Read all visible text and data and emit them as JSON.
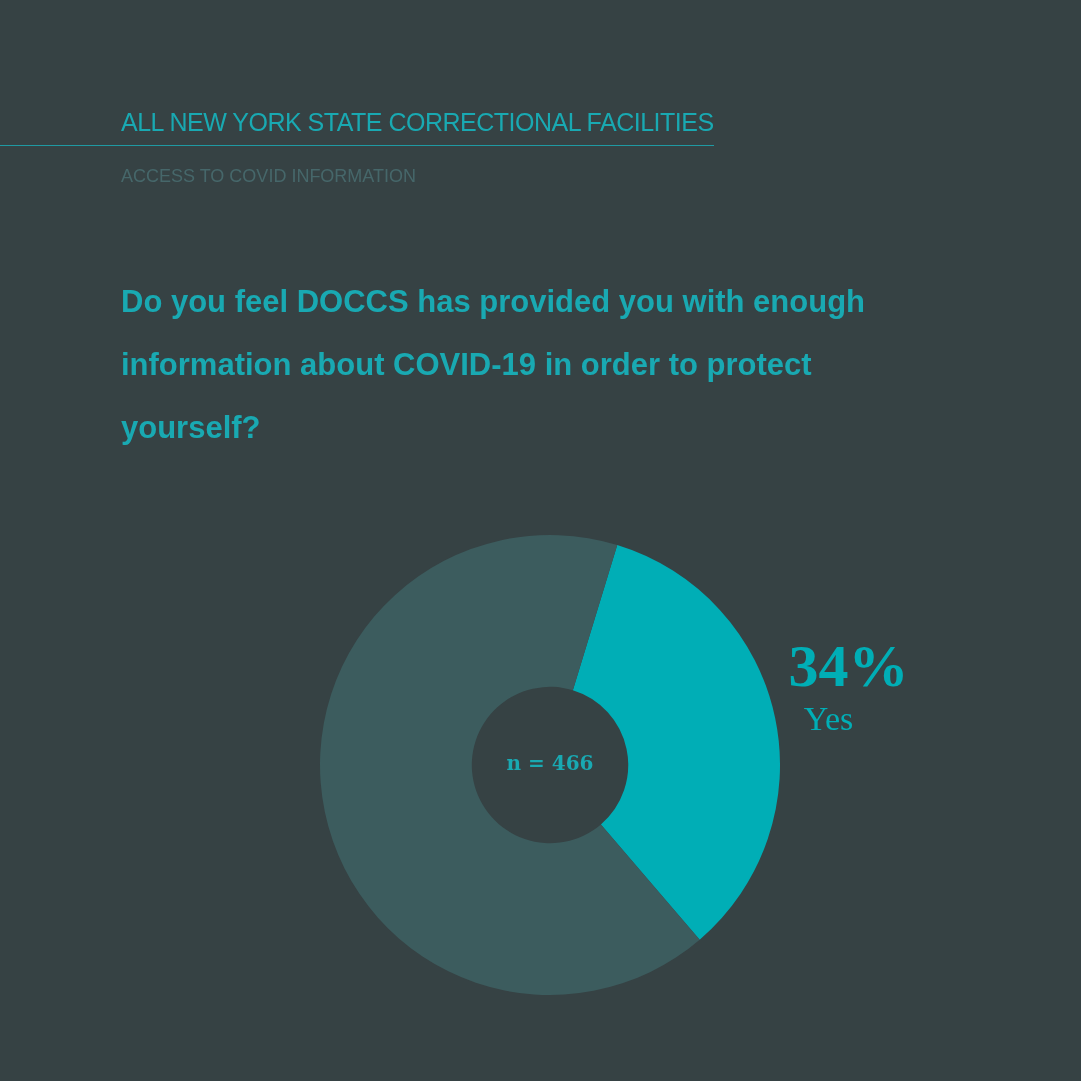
{
  "chart_data": {
    "type": "donut",
    "title": "ALL NEW YORK STATE CORRECTIONAL FACILITIES",
    "subtitle": "ACCESS TO COVID INFORMATION",
    "categories": [
      "Yes",
      null
    ],
    "values": [
      34,
      66
    ],
    "colors": [
      "#00aeb6",
      "#3c5c5e"
    ],
    "value_labels": [
      "34%",
      null
    ],
    "annotations": [
      "Do you feel DOCCS has provided you with enough information about COVID-19 in order to protect yourself?",
      "n = 466"
    ]
  }
}
